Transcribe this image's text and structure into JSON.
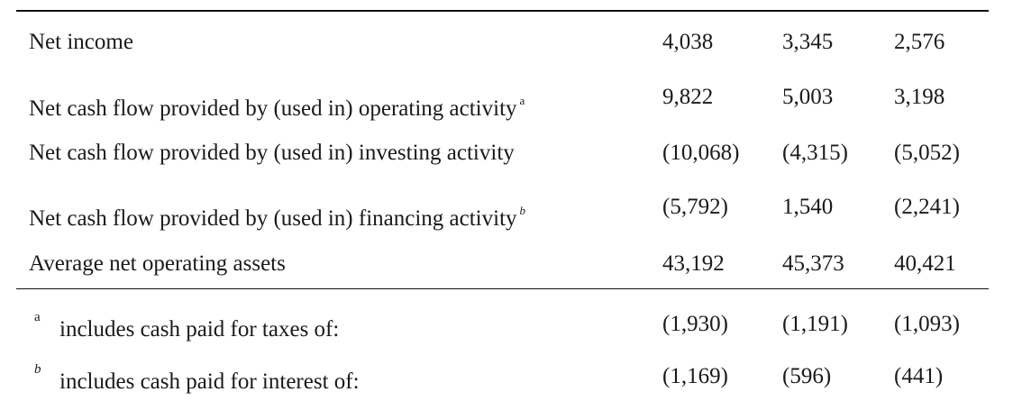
{
  "rows": [
    {
      "label": "Net income",
      "sup": "",
      "values": [
        "4,038",
        "3,345",
        "2,576"
      ]
    },
    {
      "label": "Net cash flow provided by (used in) operating activity",
      "sup": "a",
      "values": [
        "9,822",
        "5,003",
        "3,198"
      ]
    },
    {
      "label": "Net cash flow provided by (used in) investing activity",
      "sup": "",
      "values": [
        "(10,068)",
        "(4,315)",
        "(5,052)"
      ]
    },
    {
      "label": "Net cash flow provided by (used in) financing activity",
      "sup": "b",
      "values": [
        "(5,792)",
        "1,540",
        "(2,241)"
      ]
    },
    {
      "label": "Average net operating assets",
      "sup": "",
      "values": [
        "43,192",
        "45,373",
        "40,421"
      ]
    }
  ],
  "footnotes": [
    {
      "mark": "a",
      "label": "includes cash paid for taxes of:",
      "values": [
        "(1,930)",
        "(1,191)",
        "(1,093)"
      ]
    },
    {
      "mark": "b",
      "label": "includes cash paid for interest of:",
      "values": [
        "(1,169)",
        "(596)",
        "(441)"
      ]
    }
  ]
}
